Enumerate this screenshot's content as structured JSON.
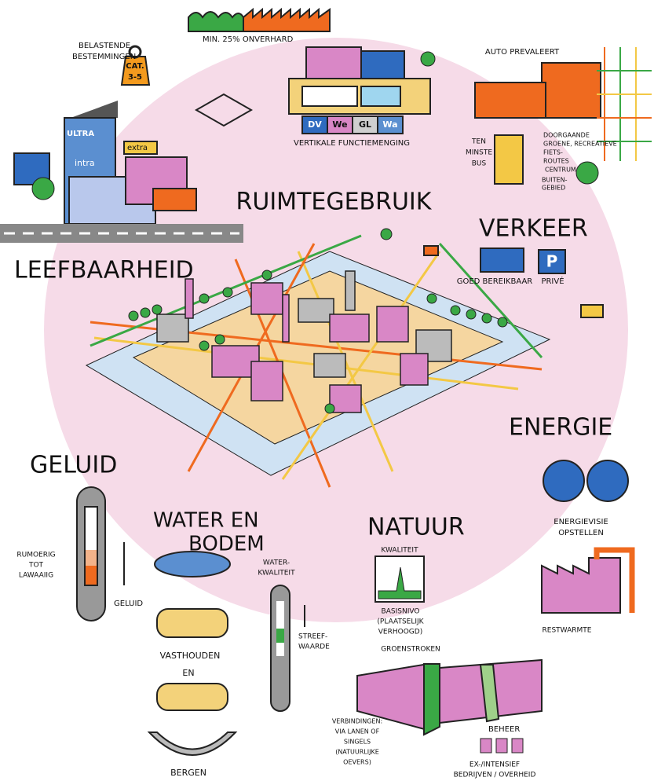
{
  "top": {
    "unpaved_label": "MIN. 25% ONVERHARD"
  },
  "liveability": {
    "title": "LEEFBAARHEID",
    "burden_lines": [
      "BELASTENDE",
      "BESTEMMINGEN"
    ],
    "weight_label": [
      "CAT.",
      "3-5"
    ],
    "signs": [
      "ULTRA",
      "intra",
      "extra"
    ]
  },
  "space_use": {
    "title": "RUIMTEGEBRUIK",
    "functions": [
      "DV",
      "We",
      "GL",
      "Wa"
    ],
    "caption": "VERTIKALE FUNCTIEMENGING"
  },
  "traffic": {
    "title": "VERKEER",
    "car": "AUTO PREVALEERT",
    "bus": [
      "TEN",
      "MINSTE",
      "BUS"
    ],
    "routes": [
      "DOORGAANDE",
      "GROENE, RECREATIEVE",
      "FIETS-",
      "ROUTES"
    ],
    "centre": "CENTRUM",
    "outskirts": [
      "BUITEN-",
      "GEBIED"
    ],
    "access": "GOED BEREIKBAAR",
    "parking_sign": "P",
    "parking": "PRIVÉ"
  },
  "energy": {
    "title": "ENERGIE",
    "vision": [
      "ENERGIEVISIE",
      "OPSTELLEN"
    ],
    "waste_heat": "RESTWARMTE"
  },
  "noise": {
    "title": "GELUID",
    "range": [
      "RUMOERIG",
      "TOT",
      "LAWAAIIG"
    ],
    "label": "GELUID"
  },
  "water_soil": {
    "title": [
      "WATER EN",
      "BODEM"
    ],
    "quality": [
      "WATER-",
      "KWALITEIT"
    ],
    "target": [
      "STREEF-",
      "WAARDE"
    ],
    "retain": "VASTHOUDEN",
    "and": "EN",
    "store": "BERGEN"
  },
  "nature": {
    "title": "NATUUR",
    "quality": "KWALITEIT",
    "base": [
      "BASISNIVO",
      "(PLAATSELIJK",
      "VERHOOGD)"
    ],
    "strips": "GROENSTROKEN",
    "links": [
      "VERBINDINGEN:",
      "VIA LANEN OF",
      "SINGELS",
      "(NATUURLIJKE",
      "OEVERS)"
    ],
    "management": "BEHEER",
    "intensity": [
      "EX-/INTENSIEF",
      "BEDRIJVEN / OVERHEID"
    ]
  }
}
